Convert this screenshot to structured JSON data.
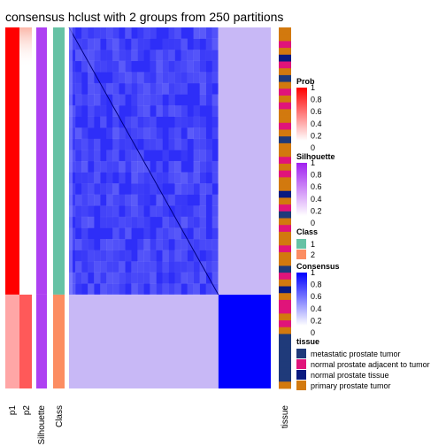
{
  "title": "consensus hclust with 2 groups from 250 partitions",
  "chart_data": {
    "type": "heatmap",
    "title": "consensus hclust with 2 groups from 250 partitions",
    "annotation_columns": [
      "p1",
      "p2",
      "Silhouette",
      "Class"
    ],
    "annotation_column_right": "tissue",
    "groups": [
      {
        "class": 1,
        "share": 0.74,
        "p1": 1.0,
        "p2": 0.0,
        "silhouette": 0.85,
        "consensus_within": 0.9,
        "consensus_between": 0.25
      },
      {
        "class": 2,
        "share": 0.26,
        "p1": 0.35,
        "p2": 0.65,
        "silhouette": 0.85,
        "consensus_within": 1.0,
        "consensus_between": 0.25
      }
    ],
    "legends": [
      {
        "title": "Prob",
        "type": "gradient",
        "colors": [
          "#ffffff",
          "#ff0000"
        ],
        "ticks": [
          "1",
          "0.8",
          "0.6",
          "0.4",
          "0.2",
          "0"
        ]
      },
      {
        "title": "Silhouette",
        "type": "gradient",
        "colors": [
          "#ffffff",
          "#a020f0"
        ],
        "ticks": [
          "1",
          "0.8",
          "0.6",
          "0.4",
          "0.2",
          "0"
        ]
      },
      {
        "title": "Class",
        "type": "discrete",
        "items": [
          {
            "label": "1",
            "color": "#66c2a5"
          },
          {
            "label": "2",
            "color": "#fc8d62"
          }
        ]
      },
      {
        "title": "Consensus",
        "type": "gradient",
        "colors": [
          "#ffffff",
          "#0000ff"
        ],
        "ticks": [
          "1",
          "0.8",
          "0.6",
          "0.4",
          "0.2",
          "0"
        ]
      },
      {
        "title": "tissue",
        "type": "discrete",
        "items": [
          {
            "label": "metastatic prostate tumor",
            "color": "#1f3a7a"
          },
          {
            "label": "normal prostate adjacent to tumor",
            "color": "#e0147a"
          },
          {
            "label": "normal prostate tissue",
            "color": "#0a1a80"
          },
          {
            "label": "primary prostate tumor",
            "color": "#d2790e"
          }
        ]
      }
    ]
  },
  "colors": {
    "prob": "#ff0000",
    "silhouette": "#a020f0",
    "consensus": "#0000ff",
    "consensus_low": "#c8b8f6"
  }
}
